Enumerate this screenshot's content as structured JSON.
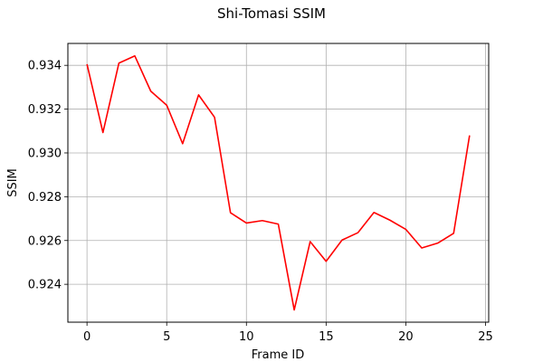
{
  "chart_data": {
    "type": "line",
    "title": "Shi-Tomasi SSIM",
    "xlabel": "Frame ID",
    "ylabel": "SSIM",
    "xlim": [
      -1.2,
      25.2
    ],
    "ylim": [
      0.92227,
      0.935
    ],
    "xticks": [
      0,
      5,
      10,
      15,
      20,
      25
    ],
    "yticks": [
      0.924,
      0.926,
      0.928,
      0.93,
      0.932,
      0.934
    ],
    "ytick_labels": [
      "0.924",
      "0.926",
      "0.928",
      "0.930",
      "0.932",
      "0.934"
    ],
    "grid": true,
    "series": [
      {
        "color": "#ff0000",
        "x": [
          0,
          1,
          2,
          3,
          4,
          5,
          6,
          7,
          8,
          9,
          10,
          11,
          12,
          13,
          14,
          15,
          16,
          17,
          18,
          19,
          20,
          21,
          22,
          23,
          24
        ],
        "values": [
          0.93405,
          0.93093,
          0.9341,
          0.93443,
          0.93282,
          0.93218,
          0.93042,
          0.93265,
          0.93163,
          0.92727,
          0.9268,
          0.92691,
          0.92675,
          0.92283,
          0.92595,
          0.92505,
          0.92602,
          0.92636,
          0.92728,
          0.92693,
          0.92651,
          0.92566,
          0.92588,
          0.92633,
          0.9308
        ]
      }
    ]
  }
}
